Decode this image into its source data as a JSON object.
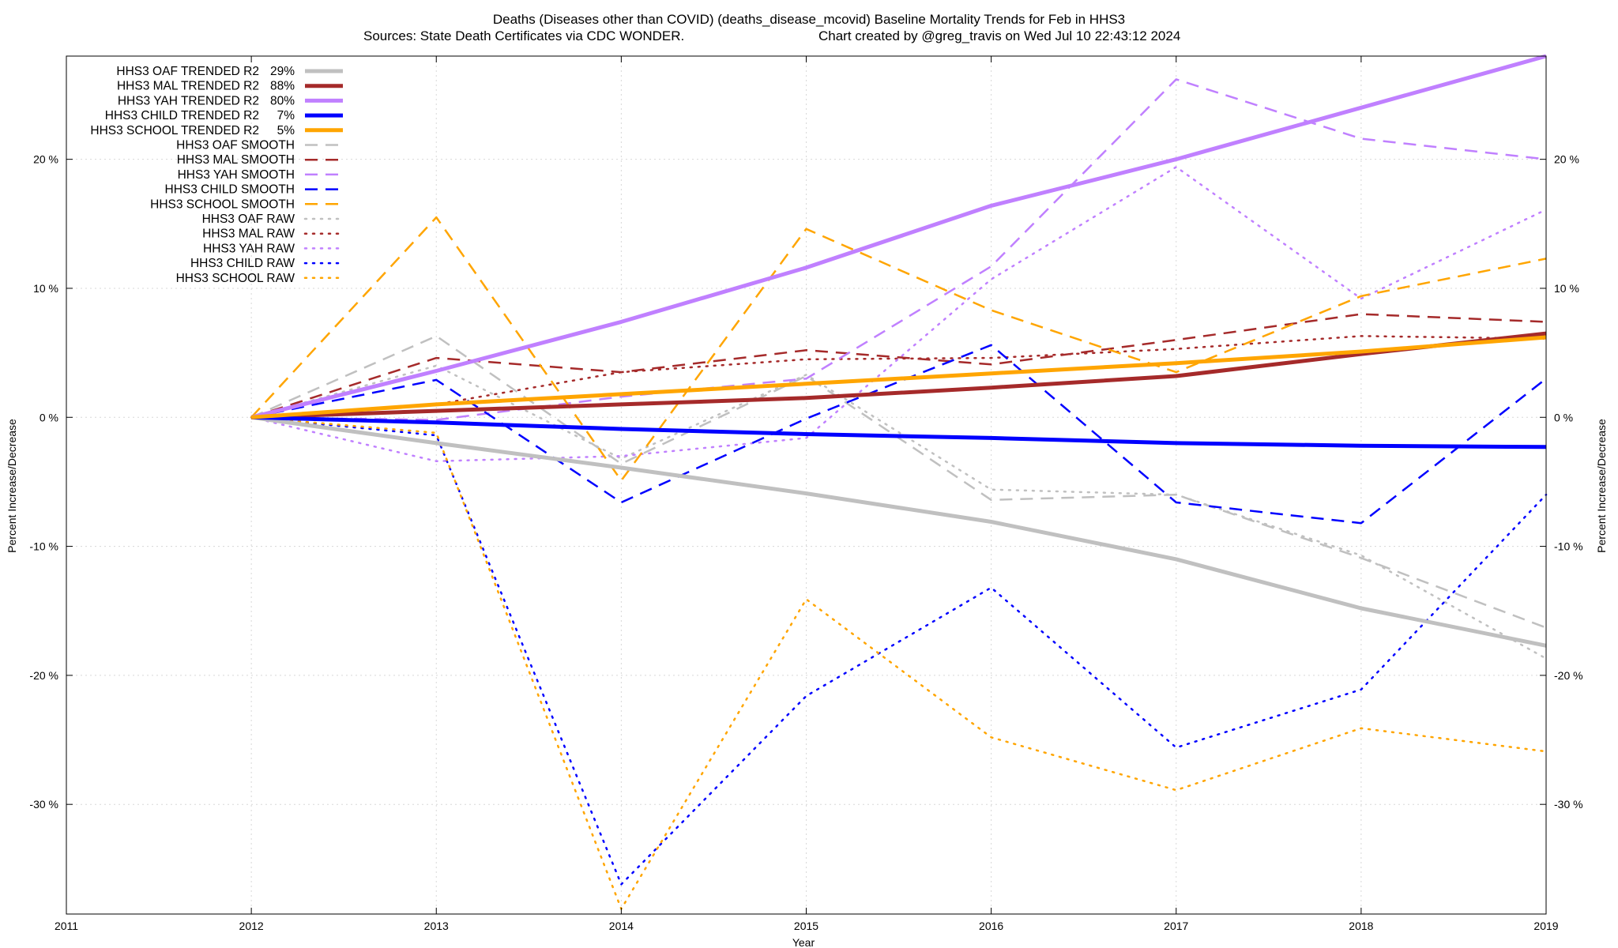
{
  "chart_data": {
    "type": "line",
    "title_line1": "Deaths (Diseases other than COVID) (deaths_disease_mcovid)  Baseline Mortality Trends for Feb in HHS3",
    "title_line2_left": "Sources: State Death Certificates via CDC WONDER.",
    "title_line2_right": "Chart created by @greg_travis on Wed Jul 10 22:43:12 2024",
    "xlabel": "Year",
    "ylabel_left": "Percent Increase/Decrease",
    "ylabel_right": "Percent Increase/Decrease",
    "xlim": [
      2011,
      2019
    ],
    "ylim": [
      -38.5,
      28
    ],
    "grid": true,
    "legend_position": "top-left",
    "x_ticks": [
      "2011",
      "2012",
      "2013",
      "2014",
      "2015",
      "2016",
      "2017",
      "2018",
      "2019"
    ],
    "y_ticks": [
      {
        "value": 20,
        "label": "20 %"
      },
      {
        "value": 10,
        "label": "10 %"
      },
      {
        "value": 0,
        "label": "0 %"
      },
      {
        "value": -10,
        "label": "-10 %"
      },
      {
        "value": -20,
        "label": "-20 %"
      },
      {
        "value": -30,
        "label": "-30 %"
      }
    ],
    "x": [
      2012,
      2013,
      2014,
      2015,
      2016,
      2017,
      2018,
      2019
    ],
    "series": [
      {
        "name": "HHS3 OAF TRENDED R2",
        "r2": "29%",
        "style": "solid",
        "color": "#c0c0c0",
        "width": 5,
        "values": [
          0,
          -2.0,
          -3.9,
          -5.9,
          -8.1,
          -11.0,
          -14.8,
          -17.7
        ]
      },
      {
        "name": "HHS3 MAL TRENDED R2",
        "r2": "88%",
        "style": "solid",
        "color": "#a52a2a",
        "width": 5,
        "values": [
          0,
          0.5,
          1.0,
          1.5,
          2.3,
          3.2,
          4.9,
          6.5
        ]
      },
      {
        "name": "HHS3 YAH TRENDED R2",
        "r2": "80%",
        "style": "solid",
        "color": "#c080ff",
        "width": 5,
        "values": [
          0,
          3.6,
          7.4,
          11.6,
          16.4,
          20.0,
          24.0,
          28.0
        ]
      },
      {
        "name": "HHS3 CHILD TRENDED R2",
        "r2": "7%",
        "style": "solid",
        "color": "#0000ff",
        "width": 5,
        "values": [
          0,
          -0.4,
          -0.9,
          -1.3,
          -1.6,
          -2.0,
          -2.2,
          -2.3
        ]
      },
      {
        "name": "HHS3 SCHOOL TRENDED R2",
        "r2": "5%",
        "style": "solid",
        "color": "#ffa500",
        "width": 5,
        "values": [
          0,
          1.0,
          1.8,
          2.6,
          3.4,
          4.2,
          5.1,
          6.2
        ]
      },
      {
        "name": "HHS3 OAF SMOOTH",
        "r2": "",
        "style": "dashed",
        "color": "#c0c0c0",
        "width": 2.5,
        "values": [
          0,
          6.3,
          -3.6,
          3.2,
          -6.4,
          -6.0,
          -10.9,
          -16.3
        ]
      },
      {
        "name": "HHS3 MAL SMOOTH",
        "r2": "",
        "style": "dashed",
        "color": "#a52a2a",
        "width": 2.5,
        "values": [
          0,
          4.6,
          3.5,
          5.2,
          4.1,
          6.0,
          8.0,
          7.4
        ]
      },
      {
        "name": "HHS3 YAH SMOOTH",
        "r2": "",
        "style": "dashed",
        "color": "#c080ff",
        "width": 2.5,
        "values": [
          0,
          -0.2,
          1.6,
          3.0,
          11.7,
          26.2,
          21.6,
          20.0
        ]
      },
      {
        "name": "HHS3 CHILD SMOOTH",
        "r2": "",
        "style": "dashed",
        "color": "#0000ff",
        "width": 2.5,
        "values": [
          0,
          2.9,
          -6.6,
          -0.1,
          5.6,
          -6.6,
          -8.2,
          3.0
        ]
      },
      {
        "name": "HHS3 SCHOOL SMOOTH",
        "r2": "",
        "style": "dashed",
        "color": "#ffa500",
        "width": 2.5,
        "values": [
          0,
          15.5,
          -4.9,
          14.6,
          8.3,
          3.5,
          9.4,
          12.3
        ]
      },
      {
        "name": "HHS3 OAF RAW",
        "r2": "",
        "style": "dotted",
        "color": "#c0c0c0",
        "width": 2.5,
        "values": [
          0,
          4.0,
          -3.2,
          3.3,
          -5.6,
          -6.0,
          -10.7,
          -18.7
        ]
      },
      {
        "name": "HHS3 MAL RAW",
        "r2": "",
        "style": "dotted",
        "color": "#a52a2a",
        "width": 2.5,
        "values": [
          0,
          1.0,
          3.5,
          4.5,
          4.6,
          5.3,
          6.3,
          6.1
        ]
      },
      {
        "name": "HHS3 YAH RAW",
        "r2": "",
        "style": "dotted",
        "color": "#c080ff",
        "width": 2.5,
        "values": [
          0,
          -3.4,
          -3.0,
          -1.6,
          10.7,
          19.4,
          9.2,
          16.1
        ]
      },
      {
        "name": "HHS3 CHILD RAW",
        "r2": "",
        "style": "dotted",
        "color": "#0000ff",
        "width": 2.5,
        "values": [
          0,
          -1.4,
          -36.2,
          -21.6,
          -13.2,
          -25.6,
          -21.1,
          -6.0
        ]
      },
      {
        "name": "HHS3 SCHOOL RAW",
        "r2": "",
        "style": "dotted",
        "color": "#ffa500",
        "width": 2.5,
        "values": [
          0,
          -1.2,
          -38.1,
          -14.1,
          -24.8,
          -28.9,
          -24.1,
          -25.9
        ]
      }
    ]
  }
}
